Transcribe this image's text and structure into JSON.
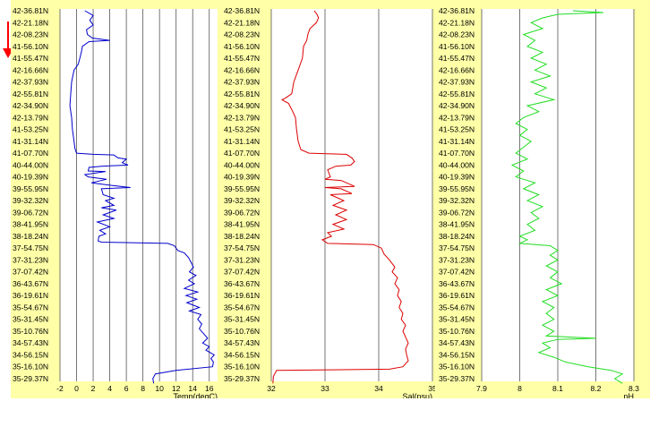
{
  "indicator": {
    "icon": "down-arrow-icon",
    "color": "#ff0000"
  },
  "chart_data": [
    {
      "type": "line",
      "xlabel": "Temp(degC)",
      "xlim": [
        -2,
        17
      ],
      "xticks": [
        -2,
        0,
        2,
        4,
        6,
        8,
        10,
        12,
        14,
        16
      ],
      "line_color": "#0000cc",
      "ytick_labels": [
        "42-36.81N",
        "42-21.18N",
        "42-08.23N",
        "41-56.10N",
        "41-55.47N",
        "42-16.66N",
        "42-37.93N",
        "42-55.81N",
        "42-34.90N",
        "42-13.79N",
        "41-53.25N",
        "41-31.14N",
        "41-07.70N",
        "40-44.00N",
        "40-19.39N",
        "39-55.95N",
        "39-32.32N",
        "39-06.72N",
        "38-41.95N",
        "38-18.24N",
        "37-54.75N",
        "37-31.23N",
        "37-07.42N",
        "36-43.67N",
        "36-19.61N",
        "35-54.67N",
        "35-31.45N",
        "35-10.76N",
        "34-57.43N",
        "34-56.15N",
        "35-16.10N",
        "35-29.37N"
      ],
      "points": [
        [
          1,
          0
        ],
        [
          2,
          0.4
        ],
        [
          1.6,
          0.8
        ],
        [
          2,
          1.2
        ],
        [
          1.2,
          1.6
        ],
        [
          1.3,
          2
        ],
        [
          1.9,
          2.3
        ],
        [
          4,
          2.5
        ],
        [
          1.5,
          2.6
        ],
        [
          0.7,
          3
        ],
        [
          0.6,
          3.4
        ],
        [
          0.4,
          4
        ],
        [
          0.2,
          4.5
        ],
        [
          -0.3,
          5
        ],
        [
          -0.6,
          6
        ],
        [
          -0.7,
          7
        ],
        [
          -0.8,
          8
        ],
        [
          -0.6,
          9
        ],
        [
          -0.5,
          10
        ],
        [
          -0.3,
          11
        ],
        [
          -0.2,
          11.6
        ],
        [
          0,
          12
        ],
        [
          2,
          12.1
        ],
        [
          4.5,
          12.15
        ],
        [
          5,
          12.4
        ],
        [
          6,
          12.5
        ],
        [
          5.5,
          12.8
        ],
        [
          6.2,
          13
        ],
        [
          3,
          13.1
        ],
        [
          1.5,
          13.2
        ],
        [
          1.4,
          13.5
        ],
        [
          3.5,
          13.55
        ],
        [
          1,
          13.8
        ],
        [
          1.4,
          14
        ],
        [
          3.6,
          14.2
        ],
        [
          1.8,
          14.5
        ],
        [
          4,
          14.7
        ],
        [
          6.5,
          14.9
        ],
        [
          3,
          15
        ],
        [
          3.2,
          15.5
        ],
        [
          4.5,
          15.8
        ],
        [
          3.5,
          16
        ],
        [
          4.5,
          16.4
        ],
        [
          3,
          16.6
        ],
        [
          4.8,
          16.8
        ],
        [
          3.2,
          17.2
        ],
        [
          4.5,
          17.5
        ],
        [
          2.5,
          17.8
        ],
        [
          4,
          18.2
        ],
        [
          2.8,
          18.5
        ],
        [
          3.5,
          18.8
        ],
        [
          2.7,
          19
        ],
        [
          2.6,
          19.4
        ],
        [
          3,
          19.5
        ],
        [
          11,
          19.6
        ],
        [
          11.8,
          19.8
        ],
        [
          12.2,
          20.2
        ],
        [
          13,
          20.4
        ],
        [
          13.5,
          20.8
        ],
        [
          13.8,
          21.2
        ],
        [
          14.1,
          21.6
        ],
        [
          13.6,
          22
        ],
        [
          14.4,
          22.3
        ],
        [
          13.5,
          22.7
        ],
        [
          14.2,
          23
        ],
        [
          13,
          23.4
        ],
        [
          14.6,
          23.7
        ],
        [
          13.2,
          24
        ],
        [
          14.5,
          24.3
        ],
        [
          13.3,
          24.6
        ],
        [
          14.8,
          25
        ],
        [
          13.6,
          25.3
        ],
        [
          15,
          25.6
        ],
        [
          14.6,
          26
        ],
        [
          15.1,
          26.4
        ],
        [
          14.8,
          26.8
        ],
        [
          15.3,
          27.2
        ],
        [
          15.8,
          27.6
        ],
        [
          15.2,
          28
        ],
        [
          16,
          28.3
        ],
        [
          15.6,
          28.6
        ],
        [
          16.6,
          29
        ],
        [
          16.2,
          29.3
        ],
        [
          16.5,
          29.6
        ],
        [
          16.4,
          30
        ],
        [
          12,
          30.3
        ],
        [
          9.5,
          30.6
        ],
        [
          9.2,
          31
        ],
        [
          9.3,
          31.4
        ]
      ]
    },
    {
      "type": "line",
      "xlabel": "Sal(psu)",
      "xlim": [
        32,
        35
      ],
      "xticks": [
        32,
        33,
        34,
        35
      ],
      "line_color": "#dd0000",
      "ytick_labels": [
        "42-36.81N",
        "42-21.18N",
        "42-08.23N",
        "41-56.10N",
        "41-55.47N",
        "42-16.66N",
        "42-37.93N",
        "42-55.81N",
        "42-34.90N",
        "42-13.79N",
        "41-53.25N",
        "41-31.14N",
        "41-07.70N",
        "40-44.00N",
        "40-19.39N",
        "39-55.95N",
        "39-32.32N",
        "39-06.72N",
        "38-41.95N",
        "38-18.24N",
        "37-54.75N",
        "37-31.23N",
        "37-07.42N",
        "36-43.67N",
        "36-19.61N",
        "35-54.67N",
        "35-31.45N",
        "35-10.76N",
        "34-57.43N",
        "34-56.15N",
        "35-16.10N",
        "35-29.37N"
      ],
      "points": [
        [
          32.8,
          0
        ],
        [
          32.85,
          0.3
        ],
        [
          32.88,
          0.6
        ],
        [
          32.84,
          1
        ],
        [
          32.72,
          1.5
        ],
        [
          32.68,
          2
        ],
        [
          32.66,
          2.5
        ],
        [
          32.6,
          3
        ],
        [
          32.58,
          4
        ],
        [
          32.5,
          5
        ],
        [
          32.42,
          6
        ],
        [
          32.38,
          7
        ],
        [
          32.25,
          7.4
        ],
        [
          32.2,
          7.5
        ],
        [
          32.32,
          7.8
        ],
        [
          32.4,
          8.5
        ],
        [
          32.45,
          9
        ],
        [
          32.47,
          10
        ],
        [
          32.5,
          11
        ],
        [
          32.55,
          11.7
        ],
        [
          32.7,
          12
        ],
        [
          33.4,
          12.1
        ],
        [
          33.5,
          12.4
        ],
        [
          33.55,
          12.7
        ],
        [
          33.48,
          13
        ],
        [
          33.2,
          13.1
        ],
        [
          33.05,
          13.4
        ],
        [
          33.1,
          14
        ],
        [
          33.0,
          14.2
        ],
        [
          33.3,
          14.3
        ],
        [
          33.55,
          14.8
        ],
        [
          33.0,
          14.9
        ],
        [
          33.3,
          15
        ],
        [
          33.5,
          15.4
        ],
        [
          33.1,
          15.5
        ],
        [
          33.35,
          16
        ],
        [
          33.15,
          16.4
        ],
        [
          33.4,
          16.8
        ],
        [
          33.2,
          17.2
        ],
        [
          33.4,
          17.6
        ],
        [
          33.15,
          18
        ],
        [
          33.35,
          18.4
        ],
        [
          33.05,
          18.7
        ],
        [
          33.12,
          19
        ],
        [
          32.95,
          19.3
        ],
        [
          33.05,
          19.6
        ],
        [
          33.9,
          19.7
        ],
        [
          34.05,
          20
        ],
        [
          34.1,
          20.5
        ],
        [
          34.2,
          21
        ],
        [
          34.3,
          21.6
        ],
        [
          34.25,
          22
        ],
        [
          34.35,
          22.5
        ],
        [
          34.3,
          23
        ],
        [
          34.38,
          23.5
        ],
        [
          34.35,
          24
        ],
        [
          34.42,
          24.5
        ],
        [
          34.38,
          25
        ],
        [
          34.45,
          25.5
        ],
        [
          34.42,
          26
        ],
        [
          34.5,
          26.5
        ],
        [
          34.45,
          27
        ],
        [
          34.5,
          27.5
        ],
        [
          34.55,
          28
        ],
        [
          34.5,
          28.5
        ],
        [
          34.52,
          29
        ],
        [
          34.55,
          29.5
        ],
        [
          34.45,
          30
        ],
        [
          34.2,
          30.2
        ],
        [
          32.1,
          30.3
        ],
        [
          32.04,
          30.8
        ],
        [
          32.03,
          31.4
        ]
      ]
    },
    {
      "type": "line",
      "xlabel": "pH",
      "xlim": [
        7.9,
        8.3
      ],
      "xticks": [
        7.9,
        8,
        8.1,
        8.2,
        8.3
      ],
      "line_color": "#22dd22",
      "ytick_labels": [
        "42-36.81N",
        "42-21.18N",
        "42-08.23N",
        "41-56.10N",
        "41-55.47N",
        "42-16.66N",
        "42-37.93N",
        "42-55.81N",
        "42-34.90N",
        "42-13.79N",
        "41-53.25N",
        "41-31.14N",
        "41-07.70N",
        "40-44.00N",
        "40-19.39N",
        "39-55.95N",
        "39-32.32N",
        "39-06.72N",
        "38-41.95N",
        "38-18.24N",
        "37-54.75N",
        "37-31.23N",
        "37-07.42N",
        "36-43.67N",
        "36-19.61N",
        "35-54.67N",
        "35-31.45N",
        "35-10.76N",
        "34-57.43N",
        "34-56.15N",
        "35-16.10N",
        "35-29.37N"
      ],
      "points": [
        [
          8.14,
          0
        ],
        [
          8.22,
          0.15
        ],
        [
          8.1,
          0.3
        ],
        [
          8.06,
          0.6
        ],
        [
          8.03,
          1
        ],
        [
          8.06,
          1.5
        ],
        [
          8.01,
          2
        ],
        [
          8.04,
          2.5
        ],
        [
          8.02,
          3
        ],
        [
          8.06,
          3.5
        ],
        [
          8.03,
          4
        ],
        [
          8.07,
          4.5
        ],
        [
          8.04,
          5
        ],
        [
          8.08,
          5.5
        ],
        [
          8.03,
          6
        ],
        [
          8.07,
          6.5
        ],
        [
          8.04,
          7
        ],
        [
          8.09,
          7.5
        ],
        [
          8.02,
          8
        ],
        [
          8.05,
          8.5
        ],
        [
          8.01,
          9
        ],
        [
          7.99,
          9.5
        ],
        [
          8.02,
          10
        ],
        [
          8.0,
          10.5
        ],
        [
          8.03,
          11
        ],
        [
          8.01,
          11.5
        ],
        [
          7.99,
          12
        ],
        [
          8.02,
          12.5
        ],
        [
          7.98,
          13
        ],
        [
          8.01,
          13.5
        ],
        [
          7.99,
          14
        ],
        [
          8.04,
          14.5
        ],
        [
          8.01,
          15
        ],
        [
          8.05,
          15.5
        ],
        [
          8.02,
          16
        ],
        [
          8.06,
          16.5
        ],
        [
          8.03,
          17
        ],
        [
          8.05,
          17.5
        ],
        [
          8.02,
          18
        ],
        [
          8.04,
          18.5
        ],
        [
          8.0,
          19
        ],
        [
          8.02,
          19.3
        ],
        [
          8.0,
          19.6
        ],
        [
          8.08,
          19.8
        ],
        [
          8.1,
          20.2
        ],
        [
          8.08,
          20.6
        ],
        [
          8.1,
          21
        ],
        [
          8.07,
          21.5
        ],
        [
          8.1,
          22
        ],
        [
          8.08,
          22.5
        ],
        [
          8.11,
          23
        ],
        [
          8.07,
          23.5
        ],
        [
          8.1,
          24
        ],
        [
          8.06,
          24.5
        ],
        [
          8.09,
          25
        ],
        [
          8.07,
          25.5
        ],
        [
          8.09,
          26
        ],
        [
          8.06,
          26.5
        ],
        [
          8.09,
          27
        ],
        [
          8.07,
          27.4
        ],
        [
          8.2,
          27.6
        ],
        [
          8.1,
          27.7
        ],
        [
          8.06,
          28
        ],
        [
          8.08,
          28.4
        ],
        [
          8.05,
          28.8
        ],
        [
          8.09,
          29.2
        ],
        [
          8.12,
          29.6
        ],
        [
          8.18,
          30
        ],
        [
          8.24,
          30.3
        ],
        [
          8.27,
          30.6
        ],
        [
          8.25,
          31
        ],
        [
          8.27,
          31.4
        ]
      ]
    }
  ]
}
